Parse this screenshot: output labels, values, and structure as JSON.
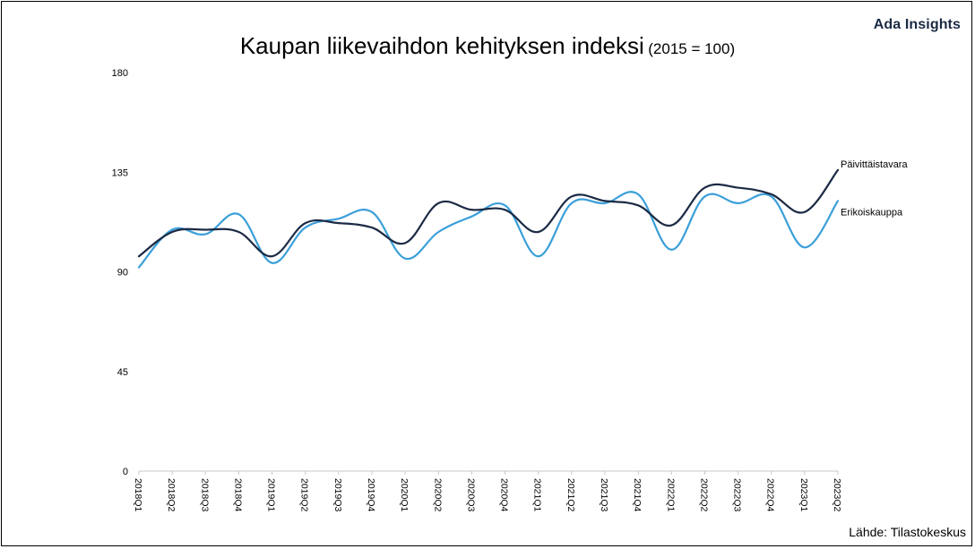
{
  "brand": "Ada Insights",
  "title": "Kaupan liikevaihdon kehityksen indeksi",
  "subtitle": "(2015 = 100)",
  "source": "Lähde: Tilastokeskus",
  "chart_data": {
    "type": "line",
    "title": "Kaupan liikevaihdon kehityksen indeksi",
    "subtitle": "(2015 = 100)",
    "xlabel": "",
    "ylabel": "",
    "ylim": [
      0,
      180
    ],
    "yticks": [
      0,
      45,
      90,
      135,
      180
    ],
    "grid": false,
    "legend": "labels at line ends",
    "categories": [
      "2018Q1",
      "2018Q2",
      "2018Q3",
      "2018Q4",
      "2019Q1",
      "2019Q2",
      "2019Q3",
      "2019Q4",
      "2020Q1",
      "2020Q2",
      "2020Q3",
      "2020Q4",
      "2021Q1",
      "2021Q2",
      "2021Q3",
      "2021Q4",
      "2022Q1",
      "2022Q2",
      "2022Q3",
      "2022Q4",
      "2023Q1",
      "2023Q2"
    ],
    "series": [
      {
        "name": "Päivittäistavara",
        "color": "#1b2a45",
        "values": [
          97,
          108,
          109,
          108,
          97,
          112,
          112,
          110,
          103,
          121,
          118,
          118,
          108,
          124,
          122,
          120,
          111,
          128,
          128,
          125,
          117,
          136
        ]
      },
      {
        "name": "Erikoiskauppa",
        "color": "#3a9fd9",
        "values": [
          92,
          109,
          107,
          116,
          94,
          110,
          114,
          117,
          96,
          108,
          115,
          120,
          97,
          121,
          121,
          125,
          100,
          124,
          121,
          124,
          101,
          122
        ]
      }
    ]
  }
}
